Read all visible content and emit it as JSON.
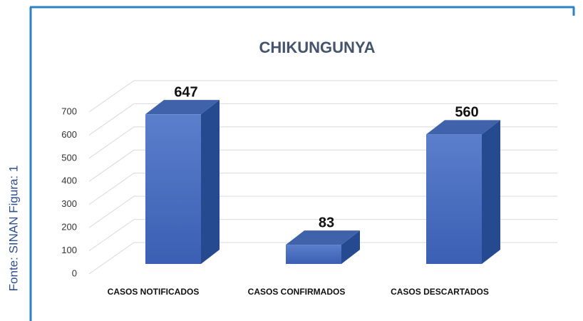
{
  "chart_data": {
    "type": "bar3d",
    "title": "CHIKUNGUNYA",
    "source": "Fonte: SINAN Figura: 1",
    "categories": [
      "CASOS NOTIFICADOS",
      "CASOS CONFIRMADOS",
      "CASOS DESCARTADOS"
    ],
    "values": [
      647,
      83,
      560
    ],
    "color": "#4a6fc0",
    "ylim": [
      0,
      700
    ],
    "yticks": [
      0,
      100,
      200,
      300,
      400,
      500,
      600,
      700
    ],
    "grid": true
  }
}
